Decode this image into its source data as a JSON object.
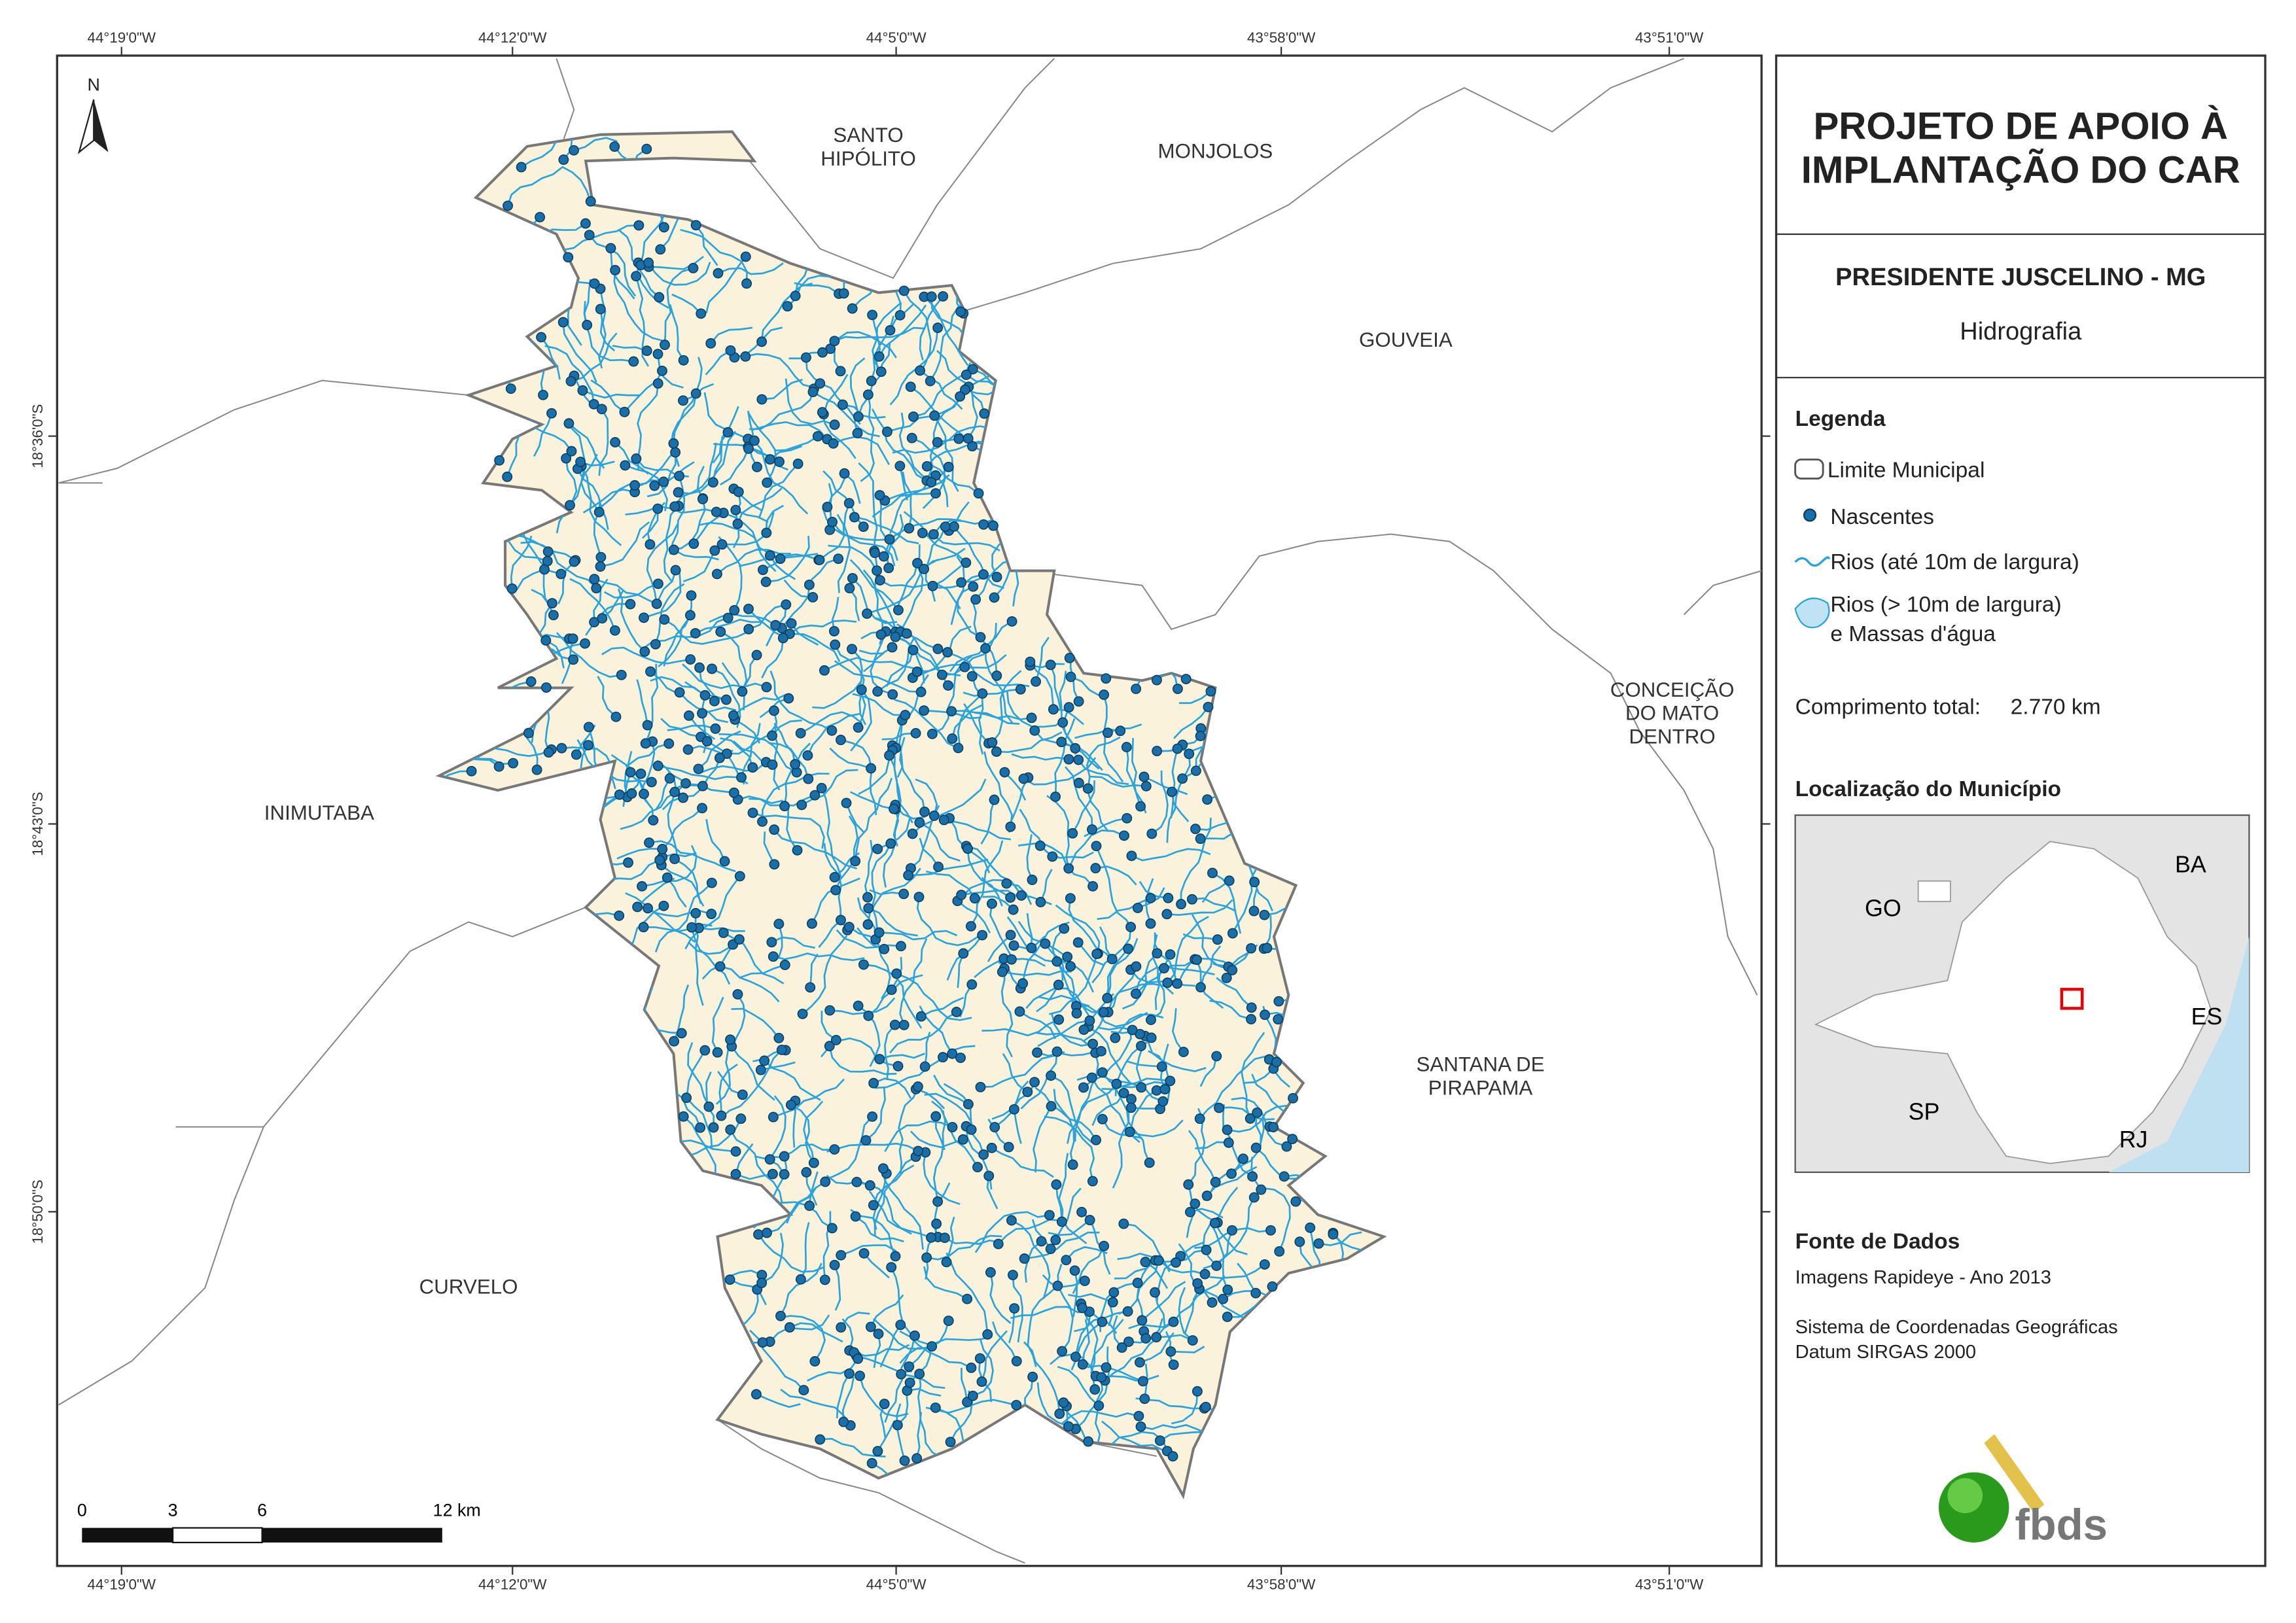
{
  "map": {
    "north": "N",
    "lon_labels": [
      "44°19'0\"W",
      "44°12'0\"W",
      "44°5'0\"W",
      "43°58'0\"W",
      "43°51'0\"W"
    ],
    "lat_labels": [
      "18°36'0\"S",
      "18°43'0\"S",
      "18°50'0\"S"
    ],
    "places": [
      [
        "SANTO",
        "HIPÓLITO"
      ],
      [
        "MONJOLOS"
      ],
      [
        "GOUVEIA"
      ],
      [
        "CONCEIÇÃO",
        "DO MATO",
        "DENTRO"
      ],
      [
        "INIMUTABA"
      ],
      [
        "SANTANA DE",
        "PIRAPAMA"
      ],
      [
        "CURVELO"
      ]
    ],
    "scale_labels": [
      "0",
      "3",
      "6",
      "12 km"
    ]
  },
  "panel": {
    "title": [
      "PROJETO DE APOIO À",
      "IMPLANTAÇÃO DO CAR"
    ],
    "municipality": "PRESIDENTE JUSCELINO - MG",
    "theme": "Hidrografia",
    "legend_title": "Legenda",
    "legend_items": [
      "Limite Municipal",
      "Nascentes",
      "Rios (até 10m de largura)",
      "Rios (> 10m de largura)",
      "e Massas d'água"
    ],
    "length_label": "Comprimento total:",
    "length_value": "2.770 km",
    "location_title": "Localização do Município",
    "inset_labels": [
      "GO",
      "BA",
      "ES",
      "SP",
      "RJ"
    ],
    "sources_title": "Fonte de Dados",
    "sources": [
      "Imagens Rapideye - Ano 2013",
      "Sistema de Coordenadas Geográficas",
      "Datum SIRGAS 2000"
    ],
    "logo": "fbds"
  }
}
